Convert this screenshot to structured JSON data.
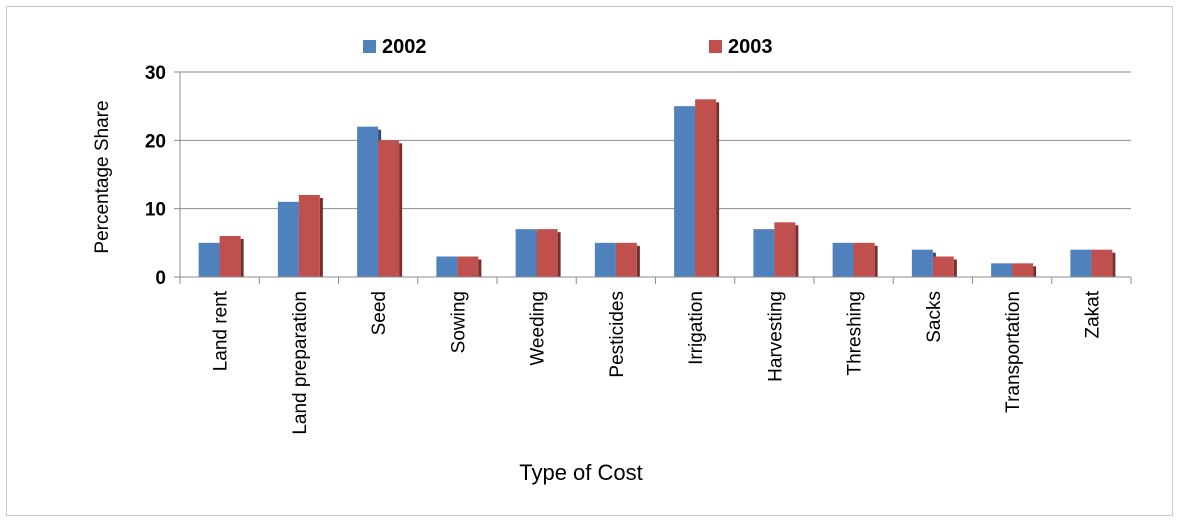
{
  "chart_data": {
    "type": "bar",
    "title": "",
    "xlabel": "Type of Cost",
    "ylabel": "Percentage Share",
    "ylim": [
      0,
      30
    ],
    "yticks": [
      0,
      10,
      20,
      30
    ],
    "grid": true,
    "legend_position": "top",
    "categories": [
      "Land rent",
      "Land preparation",
      "Seed",
      "Sowing",
      "Weeding",
      "Pesticides",
      "Irrigation",
      "Harvesting",
      "Threshing",
      "Sacks",
      "Transportation",
      "Zakat"
    ],
    "series": [
      {
        "name": "2002",
        "color": "#4f81bd",
        "values": [
          5,
          11,
          22,
          3,
          7,
          5,
          25,
          7,
          5,
          4,
          2,
          4
        ]
      },
      {
        "name": "2003",
        "color": "#c0504d",
        "values": [
          6,
          12,
          20,
          3,
          7,
          5,
          26,
          8,
          5,
          3,
          2,
          4
        ]
      }
    ]
  }
}
